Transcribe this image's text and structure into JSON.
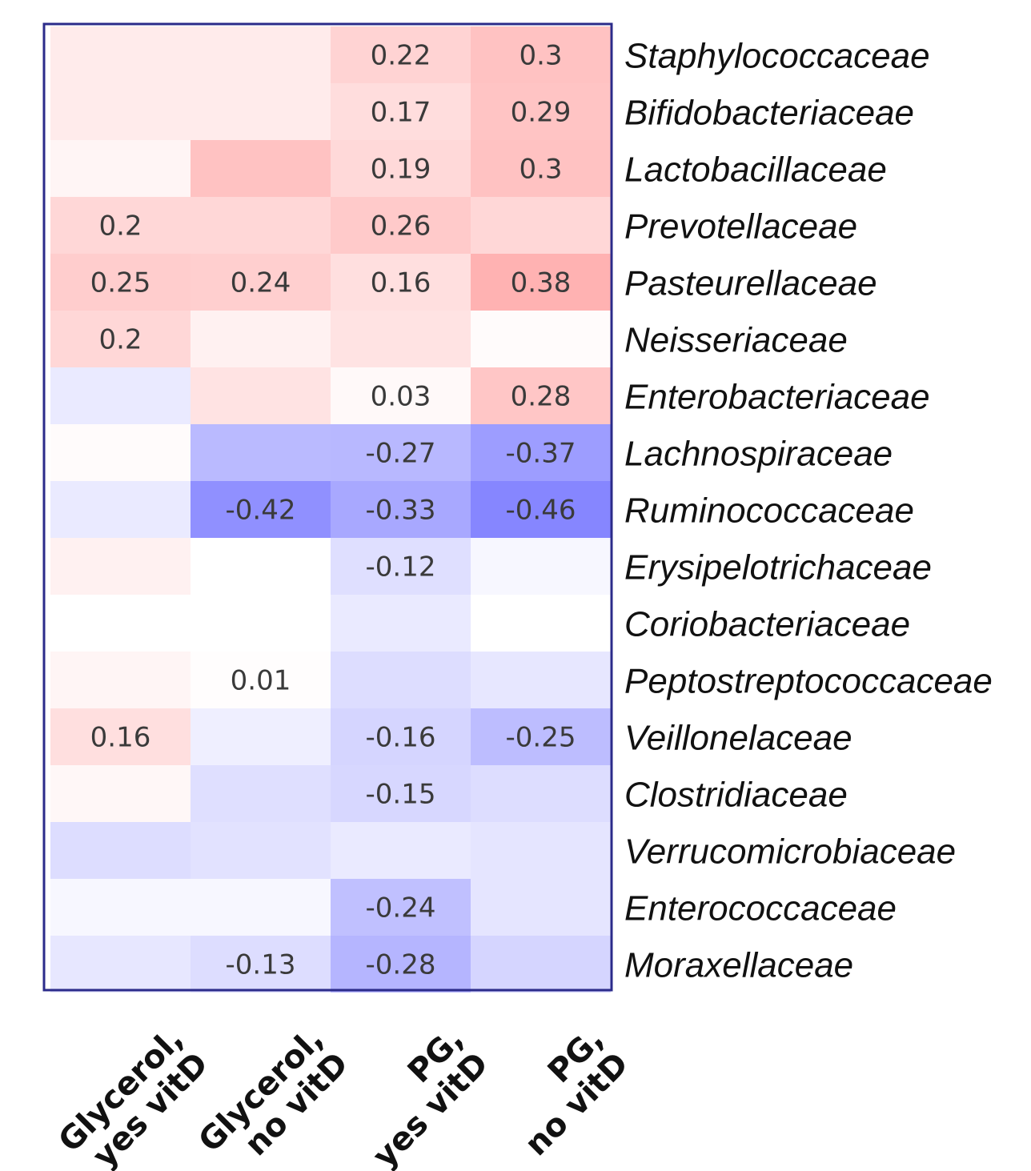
{
  "chart_data": {
    "type": "heatmap",
    "title": "",
    "columns": [
      [
        "Glycerol,",
        "yes vitD"
      ],
      [
        "Glycerol,",
        "no vitD"
      ],
      [
        "PG,",
        "yes vitD"
      ],
      [
        "PG,",
        "no vitD"
      ]
    ],
    "rows": [
      "Staphylococcaceae",
      "Bifidobacteriaceae",
      "Lactobacillaceae",
      "Prevotellaceae",
      "Pasteurellaceae",
      "Neisseriaceae",
      "Enterobacteriaceae",
      "Lachnospiraceae",
      "Ruminococcaceae",
      "Erysipelotrichaceae",
      "Coriobacteriaceae",
      "Peptostreptococcaceae",
      "Veillonelaceae",
      "Clostridiaceae",
      "Verrucomicrobiaceae",
      "Enterococcaceae",
      "Moraxellaceae"
    ],
    "labels": [
      [
        "",
        "",
        "0.22",
        "0.3"
      ],
      [
        "",
        "",
        "0.17",
        "0.29"
      ],
      [
        "",
        "",
        "0.19",
        "0.3"
      ],
      [
        "0.2",
        "",
        "0.26",
        ""
      ],
      [
        "0.25",
        "0.24",
        "0.16",
        "0.38"
      ],
      [
        "0.2",
        "",
        "",
        ""
      ],
      [
        "",
        "",
        "0.03",
        "0.28"
      ],
      [
        "",
        "",
        "-0.27",
        "-0.37"
      ],
      [
        "",
        "-0.42",
        "-0.33",
        "-0.46"
      ],
      [
        "",
        "",
        "-0.12",
        ""
      ],
      [
        "",
        "",
        "",
        ""
      ],
      [
        "",
        "0.01",
        "",
        ""
      ],
      [
        "0.16",
        "",
        "-0.16",
        "-0.25"
      ],
      [
        "",
        "",
        "-0.15",
        ""
      ],
      [
        "",
        "",
        "",
        ""
      ],
      [
        "",
        "",
        "-0.24",
        ""
      ],
      [
        "",
        "-0.13",
        "-0.28",
        ""
      ]
    ],
    "values": [
      [
        0.1,
        0.1,
        0.22,
        0.3
      ],
      [
        0.1,
        0.1,
        0.17,
        0.29
      ],
      [
        0.05,
        0.3,
        0.19,
        0.3
      ],
      [
        0.2,
        0.2,
        0.26,
        0.2
      ],
      [
        0.25,
        0.24,
        0.16,
        0.38
      ],
      [
        0.2,
        0.07,
        0.14,
        0.02
      ],
      [
        -0.08,
        0.14,
        0.03,
        0.28
      ],
      [
        0.02,
        -0.26,
        -0.27,
        -0.37
      ],
      [
        -0.08,
        -0.42,
        -0.33,
        -0.46
      ],
      [
        0.07,
        0.0,
        -0.12,
        -0.03
      ],
      [
        0.0,
        0.0,
        -0.08,
        0.0
      ],
      [
        0.05,
        0.01,
        -0.13,
        -0.09
      ],
      [
        0.16,
        -0.06,
        -0.16,
        -0.25
      ],
      [
        0.04,
        -0.12,
        -0.15,
        -0.13
      ],
      [
        -0.13,
        -0.11,
        -0.08,
        -0.1
      ],
      [
        -0.03,
        -0.03,
        -0.24,
        -0.1
      ],
      [
        -0.09,
        -0.13,
        -0.28,
        -0.16
      ]
    ],
    "color_scale": {
      "min": -0.5,
      "max": 0.5,
      "negative": "#7b7bff",
      "neutral": "#ffffff",
      "positive": "#ff9a9a"
    },
    "frame_color": "#2b2b8a"
  }
}
